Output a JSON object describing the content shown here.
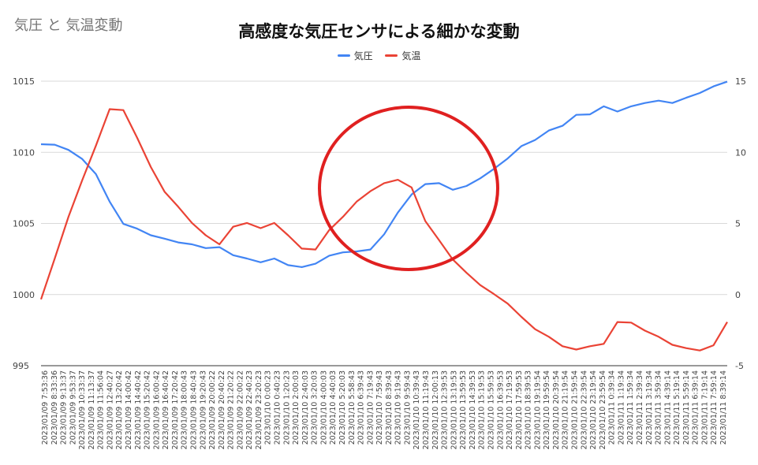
{
  "sheet_title": "気圧 と 気温変動",
  "chart_data": {
    "type": "line",
    "title": "高感度な気圧センサによる細かな変動",
    "legend_position": "top",
    "grid": true,
    "y_left": {
      "min": 995,
      "max": 1015,
      "ticks": [
        995,
        1000,
        1005,
        1010,
        1015
      ]
    },
    "y_right": {
      "min": -5,
      "max": 15,
      "ticks": [
        -5,
        0,
        5,
        10,
        15
      ]
    },
    "x_range": [
      "2023/01/09 7:53:36",
      "2023/01/11 8:39:14"
    ],
    "x_tick_labels": [
      "2023/01/09 7:53:36",
      "2023/01/09 8:33:36",
      "2023/01/09 9:13:37",
      "2023/01/09 9:53:37",
      "2023/01/09 10:33:37",
      "2023/01/09 11:13:37",
      "2023/01/09 11:56:04",
      "2023/01/09 12:40:27",
      "2023/01/09 13:20:42",
      "2023/01/09 14:00:42",
      "2023/01/09 14:40:42",
      "2023/01/09 15:20:42",
      "2023/01/09 16:00:42",
      "2023/01/09 16:40:42",
      "2023/01/09 17:20:42",
      "2023/01/09 18:00:43",
      "2023/01/09 18:40:43",
      "2023/01/09 19:20:43",
      "2023/01/09 20:00:22",
      "2023/01/09 20:40:22",
      "2023/01/09 21:20:22",
      "2023/01/09 22:00:22",
      "2023/01/09 22:40:23",
      "2023/01/09 23:20:23",
      "2023/01/10 0:00:23",
      "2023/01/10 0:40:23",
      "2023/01/10 1:20:23",
      "2023/01/10 2:00:03",
      "2023/01/10 2:40:03",
      "2023/01/10 3:20:03",
      "2023/01/10 4:00:03",
      "2023/01/10 4:40:03",
      "2023/01/10 5:20:03",
      "2023/01/10 5:58:43",
      "2023/01/10 6:39:43",
      "2023/01/10 7:19:43",
      "2023/01/10 7:59:43",
      "2023/01/10 8:39:43",
      "2023/01/10 9:19:43",
      "2023/01/10 9:59:43",
      "2023/01/10 10:39:43",
      "2023/01/10 11:19:43",
      "2023/01/10 12:00:13",
      "2023/01/10 12:39:53",
      "2023/01/10 13:19:53",
      "2023/01/10 13:59:53",
      "2023/01/10 14:39:53",
      "2023/01/10 15:19:53",
      "2023/01/10 15:59:53",
      "2023/01/10 16:39:53",
      "2023/01/10 17:19:53",
      "2023/01/10 17:59:53",
      "2023/01/10 18:39:53",
      "2023/01/10 19:19:54",
      "2023/01/10 19:59:54",
      "2023/01/10 20:39:54",
      "2023/01/10 21:19:54",
      "2023/01/10 21:59:54",
      "2023/01/10 22:39:54",
      "2023/01/10 23:19:54",
      "2023/01/10 23:59:54",
      "2023/01/11 0:39:34",
      "2023/01/11 1:19:34",
      "2023/01/11 1:59:34",
      "2023/01/11 2:39:34",
      "2023/01/11 3:19:34",
      "2023/01/11 3:59:34",
      "2023/01/11 4:39:14",
      "2023/01/11 5:19:14",
      "2023/01/11 5:59:14",
      "2023/01/11 6:39:14",
      "2023/01/11 7:19:14",
      "2023/01/11 7:59:14",
      "2023/01/11 8:39:14"
    ],
    "series": [
      {
        "name": "気圧",
        "axis": "left",
        "color": "#4285f4",
        "x": [
          0,
          0.02,
          0.04,
          0.06,
          0.08,
          0.1,
          0.12,
          0.14,
          0.16,
          0.18,
          0.2,
          0.22,
          0.24,
          0.26,
          0.28,
          0.3,
          0.32,
          0.34,
          0.36,
          0.38,
          0.4,
          0.42,
          0.44,
          0.46,
          0.48,
          0.5,
          0.52,
          0.54,
          0.56,
          0.58,
          0.6,
          0.62,
          0.64,
          0.66,
          0.68,
          0.7,
          0.72,
          0.74,
          0.76,
          0.78,
          0.8,
          0.82,
          0.84,
          0.86,
          0.88,
          0.9,
          0.92,
          0.94,
          0.96,
          0.98,
          1
        ],
        "values": [
          1010.6,
          1010.5,
          1010.2,
          1009.5,
          1008.5,
          1006.5,
          1005.0,
          1004.6,
          1004.2,
          1003.9,
          1003.7,
          1003.5,
          1003.3,
          1003.3,
          1002.8,
          1002.5,
          1002.3,
          1002.5,
          1002.1,
          1001.9,
          1002.2,
          1002.7,
          1003.0,
          1003.0,
          1003.2,
          1004.2,
          1005.8,
          1007.0,
          1007.8,
          1007.8,
          1007.4,
          1007.6,
          1008.2,
          1008.8,
          1009.6,
          1010.4,
          1010.9,
          1011.5,
          1011.9,
          1012.6,
          1012.7,
          1013.2,
          1012.9,
          1013.2,
          1013.5,
          1013.6,
          1013.5,
          1013.8,
          1014.2,
          1014.6,
          1015.0
        ]
      },
      {
        "name": "気温",
        "axis": "right",
        "color": "#ea4335",
        "x": [
          0,
          0.02,
          0.04,
          0.06,
          0.08,
          0.1,
          0.12,
          0.14,
          0.16,
          0.18,
          0.2,
          0.22,
          0.24,
          0.26,
          0.28,
          0.3,
          0.32,
          0.34,
          0.36,
          0.38,
          0.4,
          0.42,
          0.44,
          0.46,
          0.48,
          0.5,
          0.52,
          0.54,
          0.56,
          0.58,
          0.6,
          0.62,
          0.64,
          0.66,
          0.68,
          0.7,
          0.72,
          0.74,
          0.76,
          0.78,
          0.8,
          0.82,
          0.84,
          0.86,
          0.88,
          0.9,
          0.92,
          0.94,
          0.96,
          0.98,
          1
        ],
        "values": [
          -0.3,
          2.5,
          5.5,
          8.0,
          10.5,
          13.0,
          13.0,
          11.0,
          9.0,
          7.2,
          6.2,
          5.0,
          4.2,
          3.5,
          4.8,
          5.0,
          4.7,
          5.0,
          4.2,
          3.2,
          3.2,
          4.5,
          5.5,
          6.5,
          7.3,
          7.8,
          8.1,
          7.5,
          5.2,
          3.8,
          2.5,
          1.5,
          0.7,
          0.0,
          -0.6,
          -1.6,
          -2.4,
          -3.0,
          -3.6,
          -3.9,
          -3.6,
          -3.5,
          -1.9,
          -2.0,
          -2.5,
          -3.0,
          -3.5,
          -3.8,
          -3.9,
          -3.6,
          -1.9
        ]
      }
    ]
  }
}
